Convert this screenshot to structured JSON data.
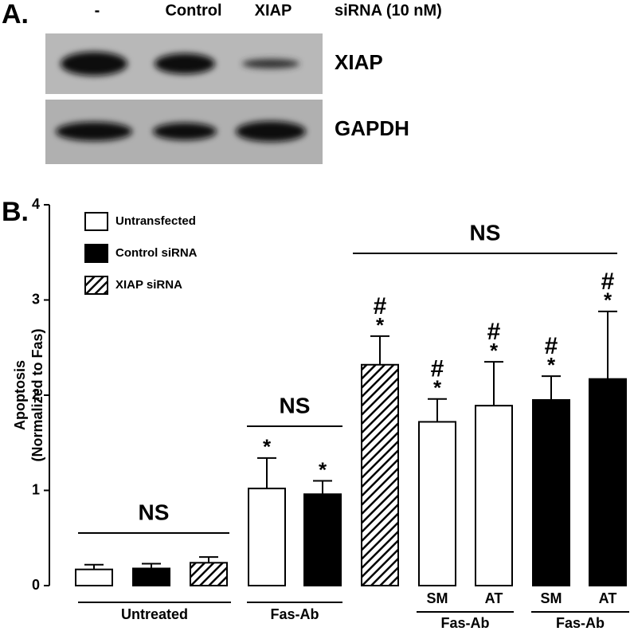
{
  "panel_a": {
    "label": "A.",
    "lanes": [
      "-",
      "Control",
      "XIAP"
    ],
    "treatment": "siRNA (10 nM)",
    "rows": [
      "XIAP",
      "GAPDH"
    ]
  },
  "chart_data": {
    "type": "bar",
    "panel_label": "B.",
    "y_label": [
      "Apoptosis",
      "(Normalized to Fas)"
    ],
    "ylim": [
      0,
      4
    ],
    "yticks": [
      0,
      1,
      2,
      3,
      4
    ],
    "categories": [
      null,
      null,
      null,
      null,
      null,
      null,
      "SM",
      "AT",
      "SM",
      "AT"
    ],
    "groups": [
      "Untreated",
      "Fas-Ab",
      "Fas-Ab",
      "Fas-Ab"
    ],
    "series": [
      {
        "name": "Untransfected",
        "color": "#ffffff",
        "values": [
          0.17,
          null,
          null,
          1.02,
          null,
          null,
          1.72,
          1.89,
          null,
          null
        ],
        "errors": [
          0.05,
          null,
          null,
          0.32,
          null,
          null,
          0.24,
          0.46,
          null,
          null
        ]
      },
      {
        "name": "Control siRNA",
        "color": "#000000",
        "values": [
          null,
          0.18,
          null,
          null,
          0.96,
          null,
          null,
          null,
          1.95,
          2.17
        ],
        "errors": [
          null,
          0.05,
          null,
          null,
          0.14,
          null,
          null,
          null,
          0.25,
          0.71
        ]
      },
      {
        "name": "XIAP siRNA",
        "color": "hatch",
        "values": [
          null,
          null,
          0.24,
          null,
          null,
          2.32,
          null,
          null,
          null,
          null
        ],
        "errors": [
          null,
          null,
          0.06,
          null,
          null,
          0.3,
          null,
          null,
          null,
          null
        ]
      }
    ],
    "star": [
      null,
      null,
      null,
      "*",
      "*",
      "*",
      "*",
      "*",
      "*",
      "*"
    ],
    "hash": [
      null,
      null,
      null,
      null,
      null,
      "#",
      "#",
      "#",
      "#",
      "#"
    ],
    "ns_labels": [
      "NS",
      "NS",
      "NS"
    ]
  }
}
